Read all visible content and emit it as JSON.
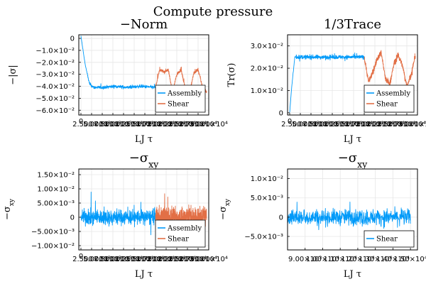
{
  "figure_title": "Compute pressure",
  "colors": {
    "assembly": "#009af9",
    "shear": "#e26f46"
  },
  "chart_data": [
    {
      "type": "line",
      "title": "−Norm",
      "xlabel": "LJ τ",
      "ylabel": "−|σ|",
      "xlim": [
        -500,
        30000
      ],
      "ylim": [
        -0.064,
        0.003
      ],
      "x_ticks": [
        0,
        2500,
        5000,
        7500,
        10000,
        12500,
        15000,
        17500,
        20000,
        22500,
        25000,
        27500,
        30000
      ],
      "x_tick_labels": [
        "0",
        "2.500×10³",
        "5.000×10³",
        "7.500×10³",
        "1.000×10⁴",
        "1.250×10⁴",
        "1.500×10⁴",
        "1.750×10⁴",
        "2.000×10⁴",
        "2.250×10⁴",
        "2.500×10⁴",
        "2.750×10⁴",
        "3.000×10⁴"
      ],
      "y_ticks": [
        0,
        -0.01,
        -0.02,
        -0.03,
        -0.04,
        -0.05,
        -0.06
      ],
      "y_tick_labels": [
        "0",
        "−1.0×10⁻²",
        "−2.0×10⁻²",
        "−3.0×10⁻²",
        "−4.0×10⁻²",
        "−5.0×10⁻²",
        "−6.0×10⁻²"
      ],
      "legend": "bottom-right",
      "series": [
        {
          "name": "Assembly",
          "color": "#009af9",
          "x": [
            0,
            1000,
            2000,
            3000,
            5000,
            8000,
            11000,
            14000,
            17500
          ],
          "y": [
            0.002,
            -0.022,
            -0.038,
            -0.041,
            -0.041,
            -0.04,
            -0.041,
            -0.04,
            -0.041
          ]
        },
        {
          "name": "Shear",
          "color": "#e26f46",
          "x": [
            17500,
            18500,
            19500,
            20500,
            21500,
            22500,
            23500,
            24500,
            25500,
            26500,
            27500,
            28500,
            29500
          ],
          "y": [
            -0.041,
            -0.026,
            -0.028,
            -0.026,
            -0.045,
            -0.03,
            -0.026,
            -0.042,
            -0.045,
            -0.029,
            -0.026,
            -0.04,
            -0.045
          ]
        }
      ]
    },
    {
      "type": "line",
      "title": "1/3Trace",
      "xlabel": "LJ τ",
      "ylabel": "Tr(σ)",
      "xlim": [
        -500,
        30000
      ],
      "ylim": [
        -0.001,
        0.035
      ],
      "x_ticks": [
        0,
        2500,
        5000,
        7500,
        10000,
        12500,
        15000,
        17500,
        20000,
        22500,
        25000,
        27500,
        30000
      ],
      "x_tick_labels": [
        "0",
        "2.500×10³",
        "5.000×10³",
        "7.500×10³",
        "1.000×10⁴",
        "1.250×10⁴",
        "1.500×10⁴",
        "1.750×10⁴",
        "2.000×10⁴",
        "2.250×10⁴",
        "2.500×10⁴",
        "2.750×10⁴",
        "3.000×10⁴"
      ],
      "y_ticks": [
        0,
        0.01,
        0.02,
        0.03
      ],
      "y_tick_labels": [
        "0",
        "1.0×10⁻²",
        "2.0×10⁻²",
        "3.0×10⁻²"
      ],
      "legend": "bottom-right",
      "series": [
        {
          "name": "Assembly",
          "color": "#009af9",
          "x": [
            0,
            500,
            1200,
            2000,
            5000,
            8000,
            11000,
            14000,
            17500
          ],
          "y": [
            0.0,
            0.012,
            0.025,
            0.025,
            0.025,
            0.025,
            0.025,
            0.025,
            0.025
          ]
        },
        {
          "name": "Shear",
          "color": "#e26f46",
          "x": [
            17500,
            18500,
            19500,
            20500,
            21500,
            22500,
            23500,
            24500,
            25500,
            26500,
            27500,
            28500,
            29500
          ],
          "y": [
            0.025,
            0.014,
            0.018,
            0.024,
            0.027,
            0.015,
            0.013,
            0.022,
            0.026,
            0.021,
            0.012,
            0.017,
            0.026
          ]
        }
      ]
    },
    {
      "type": "line",
      "title": "−σ_xy",
      "xlabel": "LJ τ",
      "ylabel": "−σ_xy",
      "xlim": [
        -500,
        30000
      ],
      "ylim": [
        -0.0115,
        0.017
      ],
      "x_ticks": [
        0,
        2500,
        5000,
        7500,
        10000,
        12500,
        15000,
        17500,
        20000,
        22500,
        25000,
        27500,
        30000
      ],
      "x_tick_labels": [
        "0",
        "2.500×10³",
        "5.000×10³",
        "7.500×10³",
        "1.000×10⁴",
        "1.250×10⁴",
        "1.500×10⁴",
        "1.750×10⁴",
        "2.000×10⁴",
        "2.250×10⁴",
        "2.500×10⁴",
        "2.750×10⁴",
        "3.000×10⁴"
      ],
      "y_ticks": [
        0.015,
        0.01,
        0.005,
        0,
        -0.005,
        -0.01
      ],
      "y_tick_labels": [
        "1.50×10⁻²",
        "1.00×10⁻²",
        "5.00×10⁻³",
        "0",
        "−5.00×10⁻³",
        "−1.00×10⁻²"
      ],
      "legend": "bottom-right",
      "series": [
        {
          "name": "Assembly",
          "color": "#009af9",
          "x": [
            0,
            3000,
            6000,
            9000,
            12000,
            15000,
            17500
          ],
          "y": [
            0,
            0,
            0,
            0,
            0,
            0,
            0
          ]
        },
        {
          "name": "Shear",
          "color": "#e26f46",
          "x": [
            17500,
            20000,
            22500,
            25000,
            27500,
            29500
          ],
          "y": [
            0,
            0,
            0,
            0,
            0,
            0
          ]
        }
      ]
    },
    {
      "type": "line",
      "title": "−σ_xy",
      "xlabel": "LJ τ",
      "ylabel": "−σ_xy",
      "xlim": [
        8000,
        15400
      ],
      "ylim": [
        -0.0085,
        0.0125
      ],
      "x_ticks": [
        9000,
        10000,
        11000,
        12000,
        13000,
        14000,
        15000
      ],
      "x_tick_labels": [
        "9.00×10³",
        "1.00×10⁴",
        "1.10×10⁴",
        "1.20×10⁴",
        "1.30×10⁴",
        "1.40×10⁴",
        "1.50×10⁴"
      ],
      "y_ticks": [
        0.01,
        0.005,
        0,
        -0.005
      ],
      "y_tick_labels": [
        "1.0×10⁻²",
        "5.0×10⁻³",
        "0",
        "−5.0×10⁻³"
      ],
      "legend": "bottom-right",
      "series": [
        {
          "name": "Shear",
          "color": "#009af9",
          "x": [
            8000,
            9000,
            10000,
            11000,
            12000,
            13000,
            14000,
            15000
          ],
          "y": [
            0,
            0,
            0,
            0,
            0,
            0,
            0,
            0
          ]
        }
      ]
    }
  ]
}
